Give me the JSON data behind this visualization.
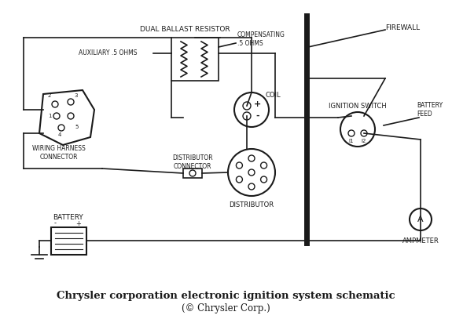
{
  "title": "Chrysler corporation electronic ignition system schematic",
  "subtitle": "(© Chrysler Corp.)",
  "bg_color": "#ffffff",
  "line_color": "#1a1a1a",
  "text_color": "#1a1a1a",
  "fig_width": 5.75,
  "fig_height": 4.07,
  "dpi": 100,
  "labels": {
    "dual_ballast": "DUAL BALLAST RESISTOR",
    "auxiliary": "AUXILIARY .5 OHMS",
    "compensating": "COMPENSATING\n.5 OHMS",
    "coil": "COIL",
    "firewall": "FIREWALL",
    "ignition_switch": "IGNITION SWITCH",
    "battery_feed": "BATTERY\nFEED",
    "distributor_conn": "DISTRIBUTOR\nCONNECTOR",
    "distributor": "DISTRIBUTOR",
    "wiring_harness": "WIRING HARNESS\nCONNECTOR",
    "battery": "BATTERY",
    "ampmeter": "AMPMETER",
    "i1": "I1",
    "i2": "I2",
    "plus": "+",
    "minus": "-",
    "bat_minus": "-",
    "bat_plus": "+"
  }
}
